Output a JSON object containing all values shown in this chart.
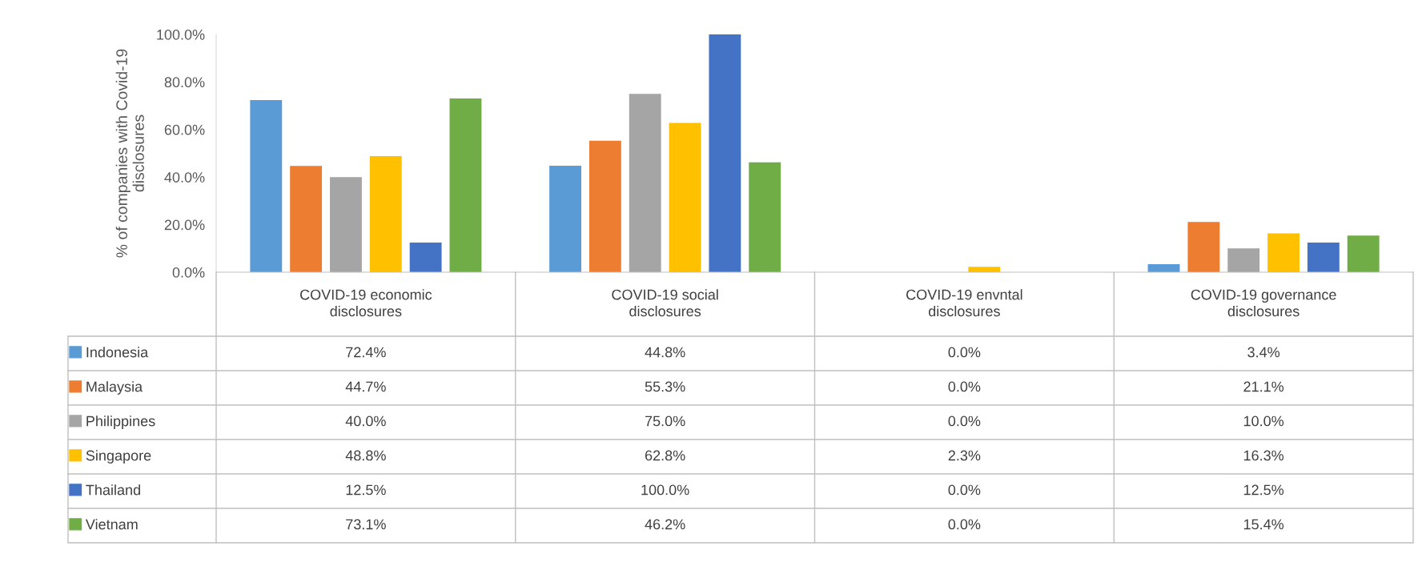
{
  "chart_data": {
    "type": "bar",
    "categories": [
      "COVID-19 economic disclosures",
      "COVID-19 social disclosures",
      "COVID-19 envntal disclosures",
      "COVID-19 governance disclosures"
    ],
    "ylabel": "% of companies with Covid-19 disclosures",
    "ylim": [
      0,
      100
    ],
    "yticks": [
      {
        "value": 0,
        "label": "0.0%"
      },
      {
        "value": 20,
        "label": "20.0%"
      },
      {
        "value": 40,
        "label": "40.0%"
      },
      {
        "value": 60,
        "label": "60.0%"
      },
      {
        "value": 80,
        "label": "80.0%"
      },
      {
        "value": 100,
        "label": "100.0%"
      }
    ],
    "grid": false,
    "legend": "bottom",
    "series": [
      {
        "name": "Indonesia",
        "color": "#5b9bd5",
        "values": [
          72.4,
          44.8,
          0.0,
          3.4
        ],
        "value_labels": [
          "72.4%",
          "44.8%",
          "0.0%",
          "3.4%"
        ]
      },
      {
        "name": "Malaysia",
        "color": "#ed7d31",
        "values": [
          44.7,
          55.3,
          0.0,
          21.1
        ],
        "value_labels": [
          "44.7%",
          "55.3%",
          "0.0%",
          "21.1%"
        ]
      },
      {
        "name": "Philippines",
        "color": "#a5a5a5",
        "values": [
          40.0,
          75.0,
          0.0,
          10.0
        ],
        "value_labels": [
          "40.0%",
          "75.0%",
          "0.0%",
          "10.0%"
        ]
      },
      {
        "name": "Singapore",
        "color": "#ffc000",
        "values": [
          48.8,
          62.8,
          2.3,
          16.3
        ],
        "value_labels": [
          "48.8%",
          "62.8%",
          "2.3%",
          "16.3%"
        ]
      },
      {
        "name": "Thailand",
        "color": "#4472c4",
        "values": [
          12.5,
          100.0,
          0.0,
          12.5
        ],
        "value_labels": [
          "12.5%",
          "100.0%",
          "0.0%",
          "12.5%"
        ]
      },
      {
        "name": "Vietnam",
        "color": "#70ad47",
        "values": [
          73.1,
          46.2,
          0.0,
          15.4
        ],
        "value_labels": [
          "73.1%",
          "46.2%",
          "0.0%",
          "15.4%"
        ]
      }
    ]
  }
}
